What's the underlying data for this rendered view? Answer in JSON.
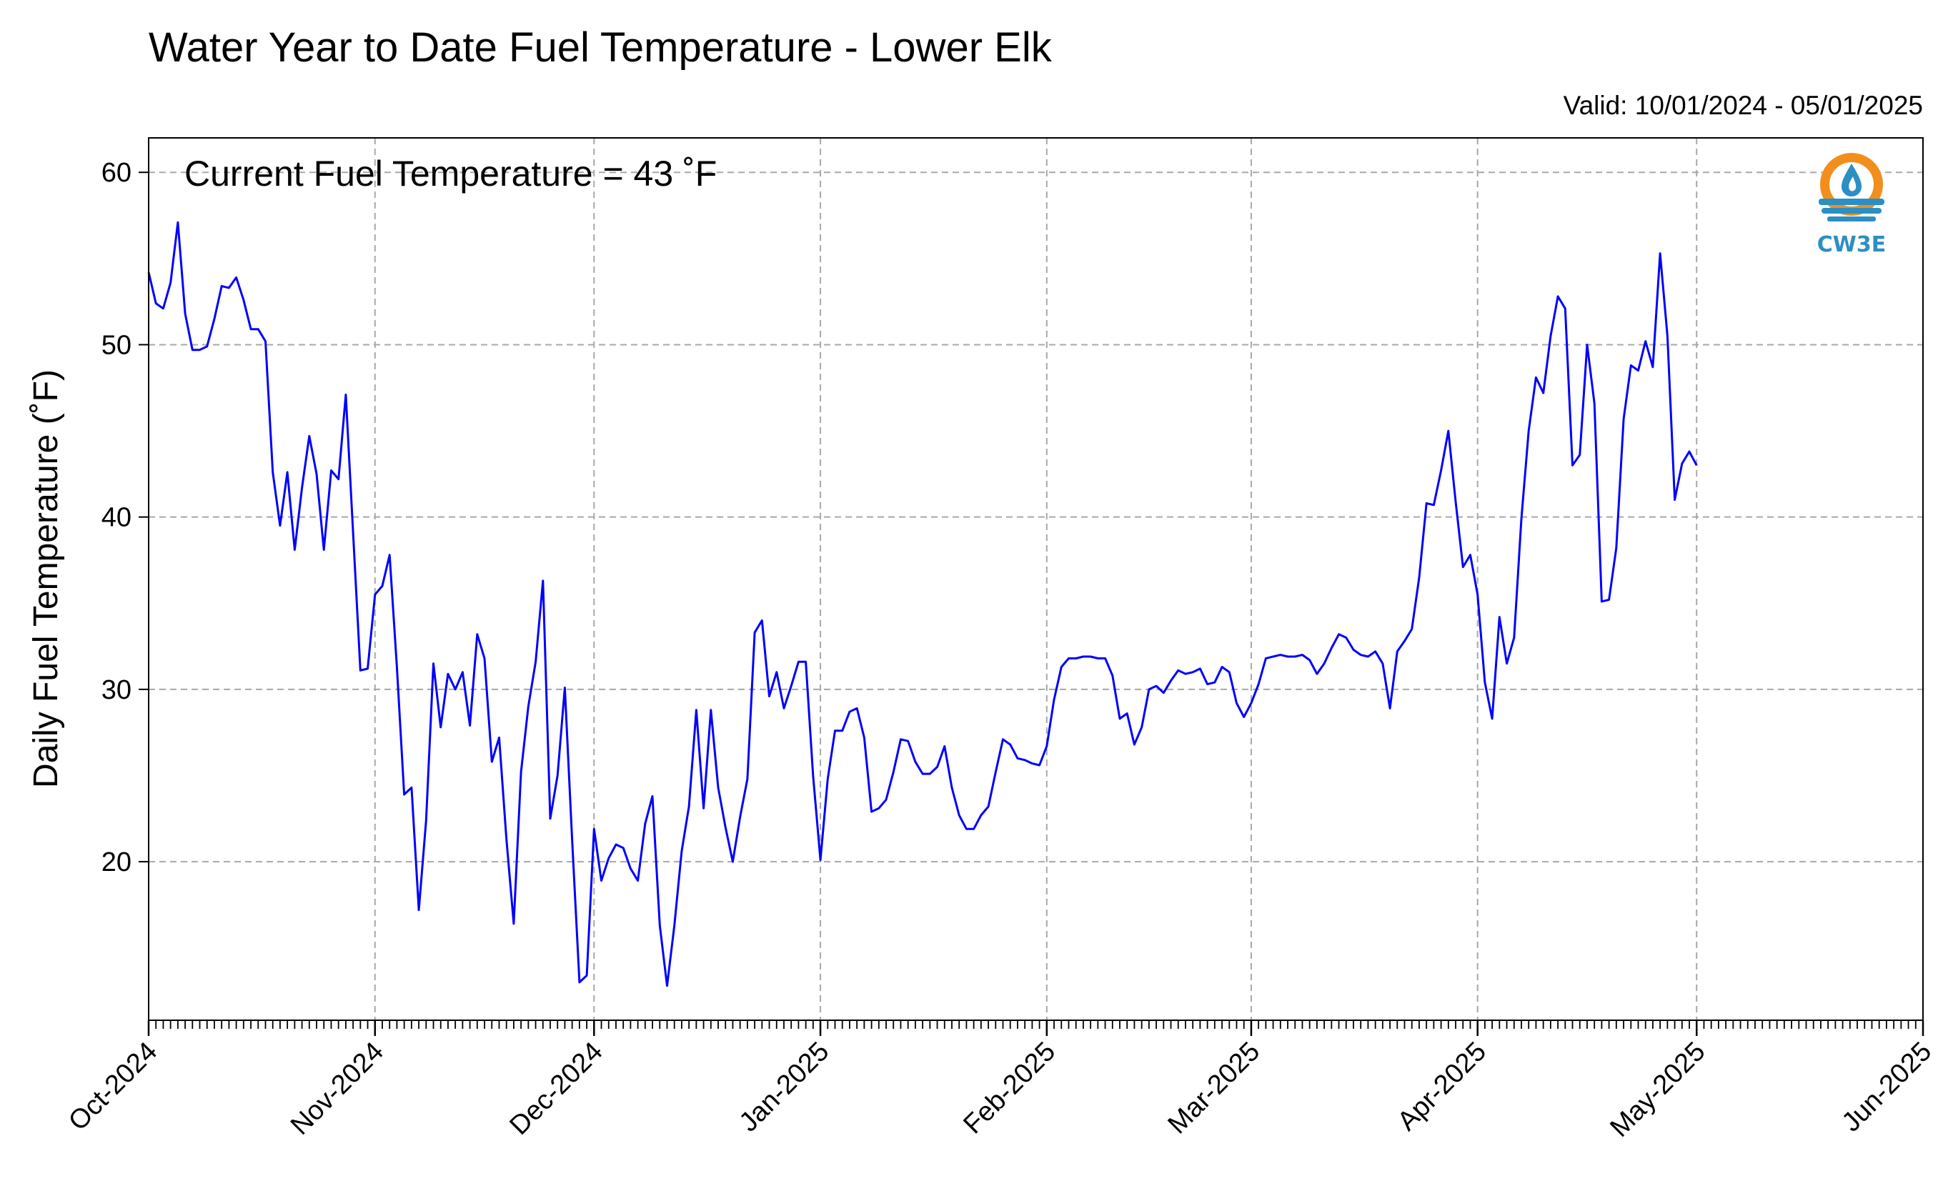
{
  "chart_data": {
    "type": "line",
    "title": "Water Year to Date Fuel Temperature - Lower Elk",
    "subtitle": "Valid: 10/01/2024 - 05/01/2025",
    "annotation": "Current Fuel Temperature = 43 ˚F",
    "ylabel": "Daily Fuel Temperature (˚F)",
    "xlabel": "",
    "ylim": [
      10.8,
      62
    ],
    "yticks": [
      20,
      30,
      40,
      50,
      60
    ],
    "xlim": [
      "2024-10-01",
      "2025-06-01"
    ],
    "xtick_labels": [
      "Oct-2024",
      "Nov-2024",
      "Dec-2024",
      "Jan-2025",
      "Feb-2025",
      "Mar-2025",
      "Apr-2025",
      "May-2025",
      "Jun-2025"
    ],
    "xtick_dates": [
      "2024-10-01",
      "2024-11-01",
      "2024-12-01",
      "2025-01-01",
      "2025-02-01",
      "2025-03-01",
      "2025-04-01",
      "2025-05-01",
      "2025-06-01"
    ],
    "grid": true,
    "line_color": "#0000ff",
    "series": [
      {
        "x_start": "2024-10-01",
        "values": [
          54.2,
          52.4,
          52.1,
          53.6,
          57.1,
          51.8,
          49.7,
          49.7,
          49.9,
          51.5,
          53.4,
          53.3,
          53.9,
          52.6,
          50.9,
          50.9,
          50.2,
          42.6,
          39.5,
          42.6,
          38.1,
          41.7,
          44.7,
          42.5,
          38.1,
          42.7,
          42.2,
          47.1,
          39.1,
          31.1,
          31.2,
          35.5,
          36.0,
          37.8,
          31.3,
          23.9,
          24.3,
          17.2,
          22.4,
          31.5,
          27.8,
          30.9,
          30.0,
          31.0,
          27.9,
          33.2,
          31.8,
          25.8,
          27.2,
          21.3,
          16.4,
          25.2,
          29.0,
          31.6,
          36.3,
          22.5,
          25.0,
          30.1,
          21.2,
          13.0,
          13.4,
          21.9,
          18.9,
          20.2,
          21.0,
          20.8,
          19.6,
          18.9,
          22.2,
          23.8,
          16.3,
          12.8,
          16.3,
          20.6,
          23.2,
          28.8,
          23.1,
          28.8,
          24.3,
          22.0,
          20.0,
          22.6,
          24.8,
          33.3,
          34.0,
          29.6,
          31.0,
          28.9,
          30.2,
          31.6,
          31.6,
          25.0,
          20.1,
          24.8,
          27.6,
          27.6,
          28.7,
          28.9,
          27.2,
          22.9,
          23.1,
          23.6,
          25.2,
          27.1,
          27.0,
          25.8,
          25.1,
          25.1,
          25.5,
          26.7,
          24.3,
          22.7,
          21.9,
          21.9,
          22.7,
          23.2,
          25.2,
          27.1,
          26.8,
          26.0,
          25.9,
          25.7,
          25.6,
          26.7,
          29.4,
          31.3,
          31.8,
          31.8,
          31.9,
          31.9,
          31.8,
          31.8,
          30.8,
          28.3,
          28.6,
          26.8,
          27.8,
          30.0,
          30.2,
          29.8,
          30.5,
          31.1,
          30.9,
          31.0,
          31.2,
          30.3,
          30.4,
          31.3,
          31.0,
          29.2,
          28.4,
          29.2,
          30.3,
          31.8,
          31.9,
          32.0,
          31.9,
          31.9,
          32.0,
          31.7,
          30.9,
          31.5,
          32.4,
          33.2,
          33.0,
          32.3,
          32.0,
          31.9,
          32.2,
          31.5,
          28.9,
          32.2,
          32.8,
          33.5,
          36.5,
          40.8,
          40.7,
          42.7,
          45.0,
          40.9,
          37.1,
          37.8,
          35.5,
          30.4,
          28.3,
          34.2,
          31.5,
          33.0,
          39.9,
          45.0,
          48.1,
          47.2,
          50.5,
          52.8,
          52.1,
          43.0,
          43.6,
          50.0,
          46.6,
          35.1,
          35.2,
          38.2,
          45.7,
          48.8,
          48.5,
          50.2,
          48.7,
          55.3,
          50.5,
          41.0,
          43.1,
          43.8,
          43.0
        ]
      }
    ]
  },
  "logo": {
    "text": "CW3E",
    "ring_color": "#f28e1c",
    "wave_color": "#2b8fc4"
  }
}
